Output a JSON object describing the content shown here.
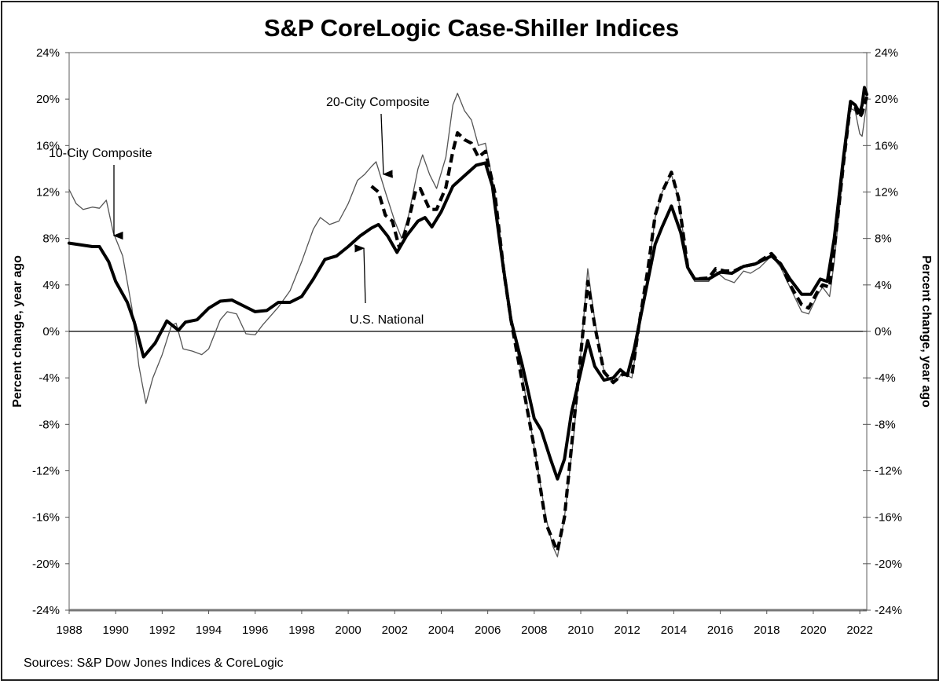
{
  "chart_data": {
    "type": "line",
    "title": "S&P CoreLogic Case-Shiller Indices",
    "ylabel": "Percent change, year ago",
    "ylabel_right": "Percent change, year ago",
    "source": "Sources: S&P Dow Jones Indices & CoreLogic",
    "xlim": [
      1988,
      2022.3
    ],
    "ylim": [
      -24,
      24
    ],
    "x_ticks": [
      "1988",
      "1990",
      "1992",
      "1994",
      "1996",
      "1998",
      "2000",
      "2002",
      "2004",
      "2006",
      "2008",
      "2010",
      "2012",
      "2014",
      "2016",
      "2018",
      "2020",
      "2022"
    ],
    "y_ticks": [
      "24%",
      "20%",
      "16%",
      "12%",
      "8%",
      "4%",
      "0%",
      "-4%",
      "-8%",
      "-12%",
      "-16%",
      "-20%",
      "-24%"
    ],
    "grid": false,
    "zero_line": true,
    "series": [
      {
        "name": "U.S. National",
        "style": "thick-solid",
        "color": "#000000",
        "x": [
          1988,
          1989,
          1989.3,
          1989.7,
          1990,
          1990.5,
          1990.8,
          1991.2,
          1991.7,
          1992.2,
          1992.7,
          1993,
          1993.5,
          1994,
          1994.5,
          1995,
          1995.5,
          1996,
          1996.5,
          1997,
          1997.5,
          1998,
          1998.5,
          1999,
          1999.5,
          2000,
          2000.5,
          2001,
          2001.3,
          2001.7,
          2002.1,
          2002.5,
          2003,
          2003.3,
          2003.6,
          2004,
          2004.5,
          2005,
          2005.5,
          2005.9,
          2006.2,
          2006.6,
          2007,
          2007.5,
          2008,
          2008.3,
          2008.7,
          2009,
          2009.3,
          2009.6,
          2010,
          2010.3,
          2010.6,
          2011,
          2011.4,
          2011.7,
          2012,
          2012.3,
          2012.7,
          2013.2,
          2013.5,
          2013.9,
          2014.3,
          2014.6,
          2014.9,
          2015.5,
          2016,
          2016.5,
          2017,
          2017.5,
          2018.2,
          2018.6,
          2019,
          2019.5,
          2019.9,
          2020.3,
          2020.6,
          2020.9,
          2021.3,
          2021.6,
          2021.8,
          2022,
          2022.1,
          2022.2,
          2022.3
        ],
        "values": [
          7.6,
          7.3,
          7.3,
          6,
          4.3,
          2.5,
          0.8,
          -2.2,
          -1,
          0.9,
          0.1,
          0.8,
          1,
          2,
          2.6,
          2.7,
          2.2,
          1.7,
          1.8,
          2.5,
          2.5,
          3,
          4.5,
          6.2,
          6.5,
          7.3,
          8.2,
          8.9,
          9.2,
          8.2,
          6.8,
          8.2,
          9.5,
          9.8,
          9,
          10.3,
          12.5,
          13.4,
          14.3,
          14.5,
          12.5,
          6.5,
          1,
          -3,
          -7.5,
          -8.5,
          -11,
          -12.7,
          -11,
          -7,
          -3.5,
          -0.8,
          -3,
          -4.2,
          -4,
          -3.3,
          -3.8,
          -1.5,
          2.5,
          7.5,
          9,
          10.8,
          8.5,
          5.5,
          4.5,
          4.5,
          5.1,
          5,
          5.6,
          5.8,
          6.5,
          5.8,
          4.5,
          3.2,
          3.2,
          4.5,
          4.3,
          8,
          15,
          19.8,
          19.5,
          18.8,
          19.5,
          21,
          20.4
        ]
      },
      {
        "name": "10-City Composite",
        "style": "thin-solid",
        "color": "#555555",
        "x": [
          1988,
          1988.3,
          1988.6,
          1989,
          1989.3,
          1989.6,
          1989.9,
          1990.3,
          1990.7,
          1991,
          1991.3,
          1991.6,
          1992,
          1992.4,
          1992.6,
          1992.9,
          1993.3,
          1993.7,
          1994,
          1994.5,
          1994.8,
          1995.2,
          1995.6,
          1996,
          1996.3,
          1997,
          1997.5,
          1998,
          1998.5,
          1998.8,
          1999.2,
          1999.6,
          2000,
          2000.4,
          2000.7,
          2001,
          2001.2,
          2001.6,
          2002,
          2002.3,
          2002.6,
          2003,
          2003.2,
          2003.5,
          2003.8,
          2004.2,
          2004.5,
          2004.7,
          2005,
          2005.3,
          2005.6,
          2005.9,
          2006.3,
          2006.7,
          2007,
          2007.5,
          2008,
          2008.5,
          2008.8,
          2009,
          2009.3,
          2009.7,
          2010,
          2010.3,
          2010.6,
          2011,
          2011.4,
          2011.8,
          2012.2,
          2012.5,
          2012.9,
          2013.2,
          2013.5,
          2013.9,
          2014.2,
          2014.6,
          2014.9,
          2015.5,
          2015.8,
          2016.2,
          2016.6,
          2017,
          2017.3,
          2017.7,
          2018.2,
          2018.6,
          2019,
          2019.5,
          2019.8,
          2020.2,
          2020.4,
          2020.7,
          2020.9,
          2021.3,
          2021.6,
          2021.8,
          2022,
          2022.1,
          2022.3
        ],
        "values": [
          12.2,
          11,
          10.5,
          10.7,
          10.6,
          11.3,
          8.5,
          6.5,
          2,
          -3,
          -6.2,
          -4,
          -2,
          0.5,
          0.7,
          -1.5,
          -1.7,
          -2,
          -1.5,
          1,
          1.7,
          1.5,
          -0.2,
          -0.3,
          0.5,
          2.1,
          3.5,
          6,
          8.8,
          9.8,
          9.2,
          9.5,
          11,
          13,
          13.5,
          14.2,
          14.6,
          12,
          9.5,
          8,
          10,
          14,
          15.2,
          13.5,
          12.3,
          15,
          19.5,
          20.5,
          19,
          18.2,
          16,
          16.2,
          12,
          5,
          1,
          -4,
          -10,
          -16,
          -18.5,
          -19.4,
          -16,
          -9,
          -2,
          5.4,
          1,
          -3.5,
          -4.5,
          -3.6,
          -4,
          0,
          5,
          9.8,
          12,
          13.5,
          11.5,
          5.5,
          4.3,
          4.3,
          5.2,
          4.5,
          4.2,
          5.2,
          5,
          5.5,
          6.5,
          5.5,
          3.8,
          1.7,
          1.5,
          3.2,
          3.8,
          3,
          6,
          14,
          19.2,
          19,
          17,
          16.8,
          19.7
        ]
      },
      {
        "name": "20-City Composite",
        "style": "thick-dashed",
        "color": "#000000",
        "x": [
          2001,
          2001.3,
          2001.6,
          2001.9,
          2002.2,
          2002.5,
          2002.9,
          2003.1,
          2003.5,
          2003.8,
          2004.2,
          2004.5,
          2004.7,
          2005,
          2005.3,
          2005.6,
          2005.9,
          2006.3,
          2006.7,
          2007,
          2007.5,
          2008,
          2008.5,
          2008.8,
          2009,
          2009.3,
          2009.7,
          2010,
          2010.3,
          2010.6,
          2011,
          2011.4,
          2011.8,
          2012.2,
          2012.5,
          2012.9,
          2013.2,
          2013.5,
          2013.9,
          2014.2,
          2014.6,
          2014.9,
          2015.5,
          2015.8,
          2016.2,
          2016.6,
          2017,
          2017.5,
          2018.2,
          2018.6,
          2019,
          2019.5,
          2019.8,
          2020.2,
          2020.4,
          2020.7,
          2020.9,
          2021.3,
          2021.6,
          2021.8,
          2022,
          2022.1,
          2022.3
        ],
        "values": [
          12.5,
          12,
          10,
          9.5,
          7.2,
          8.8,
          12.1,
          12.3,
          10.5,
          10.5,
          12.4,
          15.5,
          17.1,
          16.5,
          16.2,
          15,
          15.5,
          12,
          5,
          1,
          -4.5,
          -10,
          -16.5,
          -18,
          -18.9,
          -16,
          -8,
          -2,
          4.3,
          0.5,
          -3.5,
          -4.4,
          -3.7,
          -3.8,
          0.5,
          5.5,
          10,
          12,
          13.7,
          11.5,
          5.5,
          4.5,
          4.6,
          5.4,
          5.2,
          5.2,
          5.6,
          5.8,
          6.7,
          5.8,
          4,
          2.3,
          2,
          3.5,
          4,
          3.8,
          7,
          14.5,
          19.6,
          19.3,
          18.4,
          18.8,
          20.2
        ]
      }
    ],
    "annotations": [
      {
        "text": "10-City Composite",
        "series": "10-City Composite"
      },
      {
        "text": "20-City Composite",
        "series": "20-City Composite"
      },
      {
        "text": "U.S. National",
        "series": "U.S. National"
      }
    ]
  }
}
